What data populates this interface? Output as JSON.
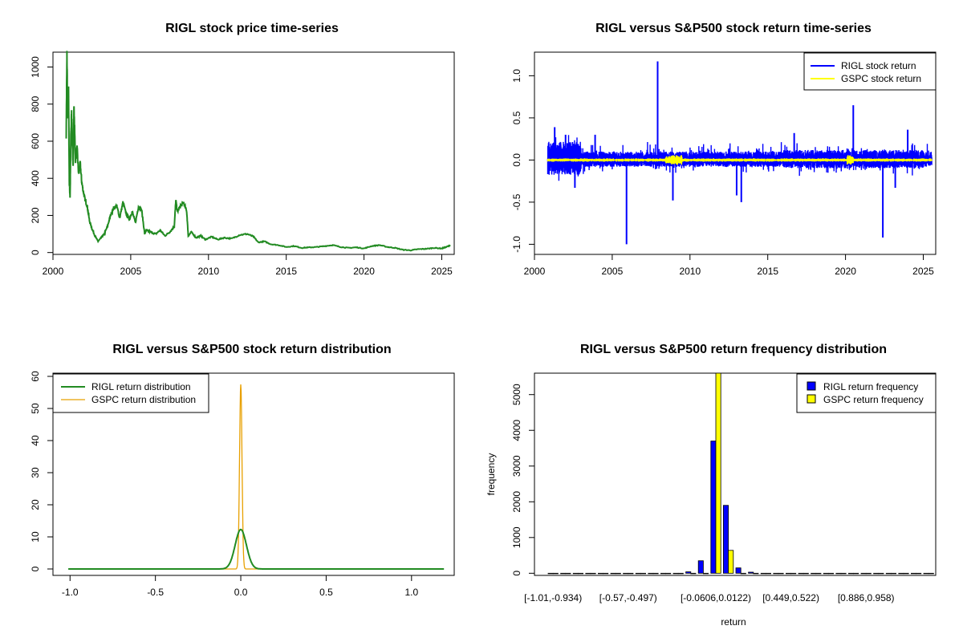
{
  "chart_data": [
    {
      "type": "line",
      "title": "RIGL stock price time-series",
      "xlabel": "",
      "ylabel": "",
      "xlim": [
        2000,
        2025.8
      ],
      "ylim": [
        0,
        1060
      ],
      "x_ticks": [
        "2000",
        "2005",
        "2010",
        "2015",
        "2020",
        "2025"
      ],
      "y_ticks": [
        "0",
        "200",
        "400",
        "600",
        "800",
        "1000"
      ],
      "grid": false,
      "series": [
        {
          "color": "#228B22",
          "x": [
            2000.85,
            2000.9,
            2000.95,
            2001.0,
            2001.05,
            2001.1,
            2001.15,
            2001.2,
            2001.25,
            2001.3,
            2001.35,
            2001.45,
            2001.55,
            2001.65,
            2001.75,
            2001.85,
            2001.95,
            2002.05,
            2002.2,
            2002.35,
            2002.5,
            2002.7,
            2002.9,
            2003.1,
            2003.3,
            2003.5,
            2003.7,
            2003.9,
            2004.1,
            2004.3,
            2004.5,
            2004.7,
            2004.9,
            2005.1,
            2005.3,
            2005.5,
            2005.7,
            2005.9,
            2006.0,
            2006.3,
            2006.6,
            2006.9,
            2007.2,
            2007.5,
            2007.8,
            2007.9,
            2008.0,
            2008.2,
            2008.4,
            2008.6,
            2008.7,
            2008.9,
            2009.2,
            2009.5,
            2009.8,
            2010.2,
            2010.6,
            2011.0,
            2011.5,
            2012.0,
            2012.5,
            2012.9,
            2013.2,
            2013.6,
            2014.0,
            2014.5,
            2015.0,
            2015.5,
            2016.0,
            2016.5,
            2017.0,
            2017.5,
            2018.0,
            2018.5,
            2019.0,
            2019.5,
            2020.0,
            2020.5,
            2021.0,
            2021.5,
            2022.0,
            2022.5,
            2023.0,
            2023.5,
            2024.0,
            2024.5,
            2025.0,
            2025.3,
            2025.55
          ],
          "y": [
            640,
            1060,
            700,
            900,
            380,
            300,
            620,
            760,
            560,
            470,
            780,
            500,
            560,
            420,
            480,
            380,
            330,
            290,
            250,
            170,
            130,
            90,
            60,
            80,
            100,
            140,
            200,
            240,
            250,
            190,
            270,
            210,
            180,
            220,
            160,
            250,
            230,
            100,
            120,
            110,
            100,
            120,
            90,
            110,
            140,
            280,
            220,
            250,
            270,
            220,
            90,
            110,
            80,
            90,
            70,
            85,
            70,
            80,
            75,
            95,
            100,
            85,
            55,
            60,
            45,
            40,
            30,
            35,
            25,
            28,
            30,
            35,
            40,
            30,
            25,
            28,
            22,
            35,
            40,
            30,
            25,
            15,
            12,
            18,
            20,
            25,
            22,
            30,
            40
          ]
        }
      ]
    },
    {
      "type": "line",
      "title": "RIGL versus S&P500 stock return time-series",
      "xlabel": "",
      "ylabel": "",
      "xlim": [
        2000,
        2025.8
      ],
      "ylim": [
        -1.0,
        1.2
      ],
      "x_ticks": [
        "2000",
        "2005",
        "2010",
        "2015",
        "2020",
        "2025"
      ],
      "y_ticks": [
        "-1.0",
        "-0.5",
        "0.0",
        "0.5",
        "1.0"
      ],
      "legend": {
        "position": "top-right"
      },
      "series": [
        {
          "name": "RIGL stock return",
          "color": "#0000FF"
        },
        {
          "name": "GSPC stock return",
          "color": "#FFFF00"
        }
      ],
      "spikes": [
        {
          "x": 2001.3,
          "y": 0.39
        },
        {
          "x": 2002.0,
          "y": 0.3
        },
        {
          "x": 2002.6,
          "y": -0.33
        },
        {
          "x": 2003.9,
          "y": 0.3
        },
        {
          "x": 2005.92,
          "y": -1.0
        },
        {
          "x": 2007.92,
          "y": 1.17
        },
        {
          "x": 2008.9,
          "y": -0.48
        },
        {
          "x": 2013.0,
          "y": -0.42
        },
        {
          "x": 2013.3,
          "y": -0.5
        },
        {
          "x": 2016.7,
          "y": 0.32
        },
        {
          "x": 2020.5,
          "y": 0.65
        },
        {
          "x": 2022.4,
          "y": -0.92
        },
        {
          "x": 2023.2,
          "y": -0.33
        },
        {
          "x": 2024.0,
          "y": 0.36
        }
      ]
    },
    {
      "type": "line",
      "title": "RIGL versus S&P500 stock return distribution",
      "xlabel": "",
      "ylabel": "",
      "xlim": [
        -1.0,
        1.2
      ],
      "ylim": [
        0,
        60
      ],
      "x_ticks": [
        "-1.0",
        "-0.5",
        "0.0",
        "0.5",
        "1.0"
      ],
      "y_ticks": [
        "0",
        "10",
        "20",
        "30",
        "40",
        "50",
        "60"
      ],
      "legend": {
        "position": "top-left"
      },
      "series": [
        {
          "name": "RIGL return distribution",
          "color": "#228B22",
          "peak_x": 0.0,
          "peak_y": 12.3
        },
        {
          "name": "GSPC return distribution",
          "color": "#E8A000",
          "peak_x": 0.0,
          "peak_y": 57.5
        }
      ]
    },
    {
      "type": "bar",
      "title": "RIGL versus S&P500 return frequency distribution",
      "xlabel": "return",
      "ylabel": "frequency",
      "ylim": [
        0,
        5600
      ],
      "y_ticks": [
        "0",
        "1000",
        "2000",
        "3000",
        "4000",
        "5000"
      ],
      "x_tick_labels": [
        "[-1.01,-0.934)",
        "[-0.57,-0.497)",
        "[-0.0606,0.0122)",
        "[0.449,0.522)",
        "[0.886,0.958)"
      ],
      "legend": {
        "position": "top-right"
      },
      "series": [
        {
          "name": "RIGL return frequency",
          "color": "#0000FF"
        },
        {
          "name": "GSPC return frequency",
          "color": "#FFFF00"
        }
      ],
      "bins": 31,
      "highlighted_bins": [
        {
          "bin": 11,
          "rigl": 40,
          "gspc": 0
        },
        {
          "bin": 12,
          "rigl": 350,
          "gspc": 0
        },
        {
          "bin": 13,
          "rigl": 3700,
          "gspc": 5600
        },
        {
          "bin": 14,
          "rigl": 1900,
          "gspc": 640
        },
        {
          "bin": 15,
          "rigl": 150,
          "gspc": 0
        },
        {
          "bin": 16,
          "rigl": 30,
          "gspc": 0
        }
      ]
    }
  ]
}
